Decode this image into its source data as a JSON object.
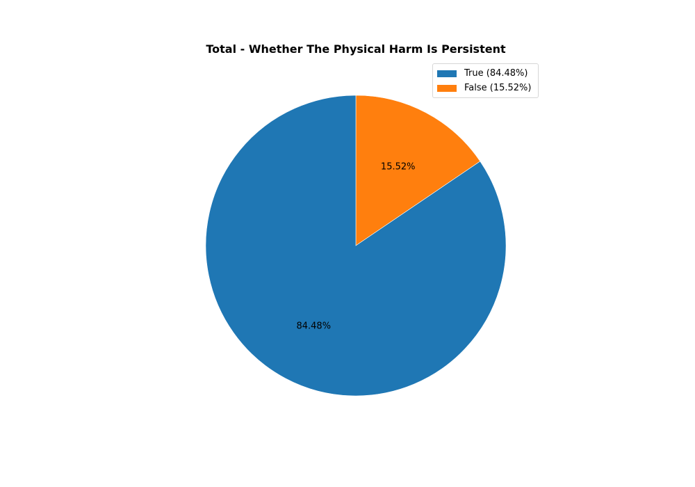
{
  "chart_data": {
    "type": "pie",
    "title": "Total - Whether The Physical Harm Is Persistent",
    "slices": [
      {
        "label": "True",
        "value": 84.48,
        "display": "84.48%",
        "legend": "True (84.48%)",
        "color": "#1f77b4"
      },
      {
        "label": "False",
        "value": 15.52,
        "display": "15.52%",
        "legend": "False (15.52%)",
        "color": "#ff7f0e"
      }
    ],
    "start_angle": "top (12 o'clock)",
    "direction": "counter-clockwise from top for first slice",
    "legend_position": "top-right"
  }
}
